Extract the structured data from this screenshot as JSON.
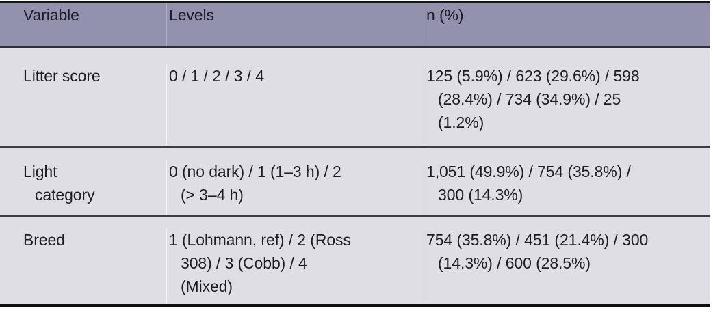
{
  "table": {
    "columns": [
      {
        "key": "variable",
        "label": "Variable"
      },
      {
        "key": "levels",
        "label": "Levels"
      },
      {
        "key": "n",
        "label": "n (%)"
      }
    ],
    "rows": [
      {
        "variable": "Litter score",
        "levels": "0 / 1 / 2 / 3 / 4",
        "n": "125 (5.9%) / 623 (29.6%) / 598\n(28.4%) / 734 (34.9%) / 25\n(1.2%)"
      },
      {
        "variable": "Light\ncategory",
        "levels": "0 (no dark) / 1 (1–3 h) / 2\n(> 3–4 h)",
        "n": "1,051 (49.9%) / 754 (35.8%) /\n300 (14.3%)"
      },
      {
        "variable": "Breed",
        "levels": "1 (Lohmann, ref) / 2 (Ross\n308) / 3 (Cobb) / 4\n(Mixed)",
        "n": "754 (35.8%) / 451 (21.4%) / 300\n(14.3%) / 600 (28.5%)"
      }
    ],
    "colors": {
      "header_bg": "#9291ae",
      "body_bg": "#dfdee5",
      "row_rule": "#3b3b44",
      "outer_rule": "#121217",
      "text": "#1d1d24"
    }
  }
}
